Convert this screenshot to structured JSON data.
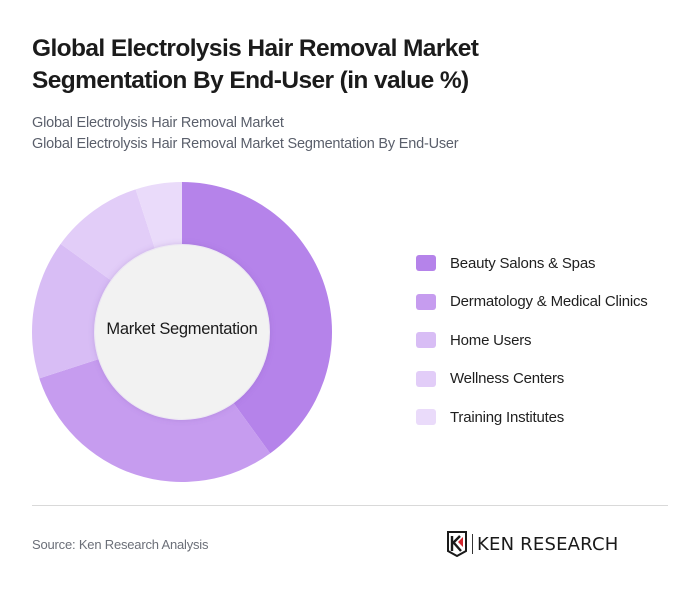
{
  "header": {
    "title": "Global Electrolysis Hair Removal Market Segmentation By End-User (in value %)",
    "subtitle_line1": "Global Electrolysis Hair Removal Market",
    "subtitle_line2": "Global Electrolysis Hair Removal Market Segmentation By End-User"
  },
  "chart": {
    "center_label": "Market Segmentation"
  },
  "legend": {
    "items": [
      {
        "label": "Beauty Salons & Spas",
        "color": "#b583ea"
      },
      {
        "label": "Dermatology & Medical Clinics",
        "color": "#c69cef"
      },
      {
        "label": "Home Users",
        "color": "#d8bdf5"
      },
      {
        "label": "Wellness Centers",
        "color": "#e2cdf8"
      },
      {
        "label": "Training Institutes",
        "color": "#eadbfa"
      }
    ]
  },
  "footer": {
    "source": "Source: Ken Research Analysis",
    "logo_text": "KEN RESEARCH"
  },
  "chart_data": {
    "type": "pie",
    "variant": "donut",
    "title": "Global Electrolysis Hair Removal Market Segmentation By End-User (in value %)",
    "subtitle": "Global Electrolysis Hair Removal Market / Global Electrolysis Hair Removal Market Segmentation By End-User",
    "center_label": "Market Segmentation",
    "categories": [
      "Beauty Salons & Spas",
      "Dermatology & Medical Clinics",
      "Home Users",
      "Wellness Centers",
      "Training Institutes"
    ],
    "values": [
      40,
      30,
      15,
      10,
      5
    ],
    "unit": "%",
    "colors": [
      "#b583ea",
      "#c69cef",
      "#d8bdf5",
      "#e2cdf8",
      "#eadbfa"
    ],
    "start_angle": "12 o'clock, clockwise",
    "legend_position": "right",
    "source": "Source: Ken Research Analysis"
  }
}
